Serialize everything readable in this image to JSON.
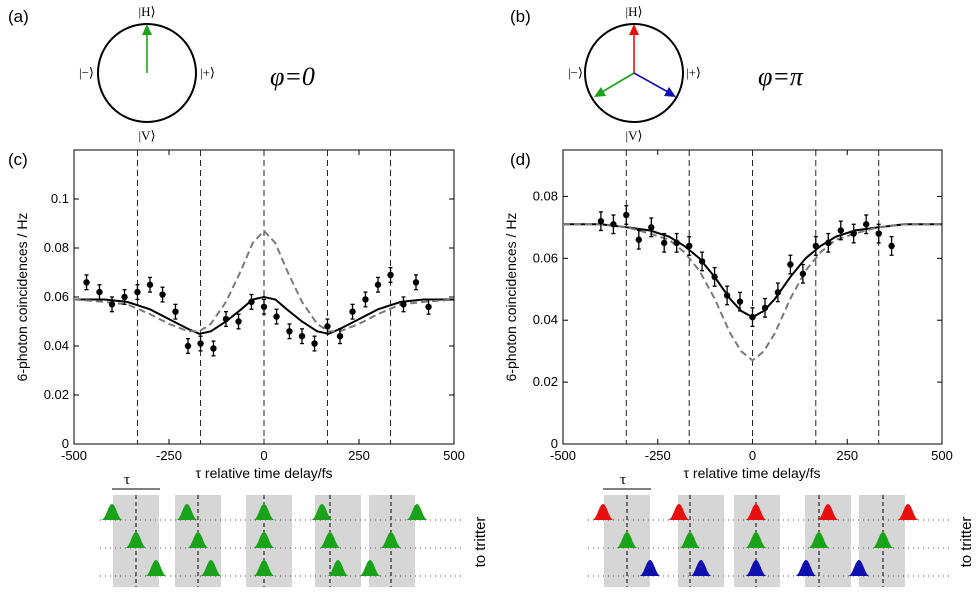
{
  "panel_labels": [
    "(a)",
    "(b)",
    "(c)",
    "(d)"
  ],
  "states": {
    "top": "|H⟩",
    "bottom": "|V⟩",
    "left": "|−⟩",
    "right": "|+⟩"
  },
  "phase_labels": [
    "φ=0",
    "φ=π"
  ],
  "arrow_colors": {
    "red": "#e8100f",
    "green": "#1aa31a",
    "blue": "#1010b0"
  },
  "pulse_labels": {
    "tau": "τ",
    "tritter": "to tritter"
  },
  "chart_data": [
    {
      "type": "scatter",
      "title": "",
      "xlabel": "τ relative time delay/fs",
      "ylabel": "6-photon coincidences / Hz",
      "xlim": [
        -500,
        500
      ],
      "ylim": [
        0,
        0.12
      ],
      "xticks": [
        -500,
        -250,
        0,
        250,
        500
      ],
      "xtick_labels": [
        "-500",
        "-250",
        "0",
        "250",
        "500"
      ],
      "yticks": [
        0,
        0.02,
        0.04,
        0.06,
        0.08,
        0.1
      ],
      "ytick_labels": [
        "0",
        "0.02",
        "0.04",
        "0.06",
        "0.08",
        "0.1"
      ],
      "vlines": [
        -333,
        -167,
        0,
        167,
        333
      ],
      "series": [
        {
          "kind": "points",
          "x": [
            -467,
            -433,
            -400,
            -367,
            -333,
            -300,
            -267,
            -233,
            -200,
            -167,
            -133,
            -100,
            -67,
            -33,
            0,
            33,
            67,
            100,
            133,
            167,
            200,
            233,
            267,
            300,
            333,
            367,
            400,
            433
          ],
          "y": [
            0.066,
            0.062,
            0.057,
            0.06,
            0.062,
            0.065,
            0.061,
            0.054,
            0.04,
            0.041,
            0.039,
            0.051,
            0.05,
            0.058,
            0.056,
            0.052,
            0.046,
            0.044,
            0.041,
            0.048,
            0.044,
            0.054,
            0.059,
            0.065,
            0.069,
            0.057,
            0.066,
            0.056
          ],
          "err": [
            0.003,
            0.003,
            0.003,
            0.003,
            0.003,
            0.003,
            0.003,
            0.003,
            0.003,
            0.003,
            0.003,
            0.003,
            0.003,
            0.003,
            0.003,
            0.003,
            0.003,
            0.003,
            0.003,
            0.003,
            0.003,
            0.003,
            0.003,
            0.003,
            0.003,
            0.003,
            0.003,
            0.003
          ]
        },
        {
          "kind": "fit",
          "style": "solid",
          "x": [
            -500,
            -420,
            -360,
            -300,
            -250,
            -200,
            -170,
            -140,
            -100,
            -60,
            -30,
            0,
            30,
            60,
            100,
            140,
            170,
            200,
            250,
            300,
            360,
            420,
            500
          ],
          "y": [
            0.059,
            0.059,
            0.058,
            0.055,
            0.051,
            0.047,
            0.045,
            0.046,
            0.05,
            0.055,
            0.059,
            0.06,
            0.059,
            0.055,
            0.05,
            0.046,
            0.045,
            0.047,
            0.051,
            0.055,
            0.058,
            0.059,
            0.059
          ]
        },
        {
          "kind": "theory",
          "style": "dashed",
          "x": [
            -500,
            -420,
            -360,
            -300,
            -250,
            -200,
            -170,
            -140,
            -100,
            -60,
            -30,
            0,
            30,
            60,
            100,
            140,
            170,
            200,
            250,
            300,
            360,
            420,
            500
          ],
          "y": [
            0.059,
            0.058,
            0.057,
            0.053,
            0.049,
            0.046,
            0.046,
            0.049,
            0.058,
            0.071,
            0.082,
            0.087,
            0.082,
            0.071,
            0.058,
            0.049,
            0.046,
            0.046,
            0.049,
            0.053,
            0.057,
            0.058,
            0.059
          ]
        }
      ]
    },
    {
      "type": "scatter",
      "title": "",
      "xlabel": "τ relative time delay/fs",
      "ylabel": "6-photon coincidences / Hz",
      "xlim": [
        -500,
        500
      ],
      "ylim": [
        0,
        0.095
      ],
      "xticks": [
        -500,
        -250,
        0,
        250,
        500
      ],
      "xtick_labels": [
        "-500",
        "-250",
        "0",
        "250",
        "500"
      ],
      "yticks": [
        0,
        0.02,
        0.04,
        0.06,
        0.08
      ],
      "ytick_labels": [
        "0",
        "0.02",
        "0.04",
        "0.06",
        "0.08"
      ],
      "vlines": [
        -333,
        -167,
        0,
        167,
        333
      ],
      "series": [
        {
          "kind": "points",
          "x": [
            -400,
            -367,
            -333,
            -300,
            -267,
            -233,
            -200,
            -167,
            -133,
            -100,
            -67,
            -33,
            0,
            33,
            67,
            100,
            133,
            167,
            200,
            233,
            267,
            300,
            333,
            367
          ],
          "y": [
            0.072,
            0.071,
            0.074,
            0.066,
            0.07,
            0.065,
            0.065,
            0.064,
            0.059,
            0.054,
            0.048,
            0.046,
            0.041,
            0.044,
            0.049,
            0.058,
            0.055,
            0.064,
            0.065,
            0.069,
            0.068,
            0.071,
            0.068,
            0.064
          ],
          "err": [
            0.003,
            0.003,
            0.003,
            0.003,
            0.003,
            0.003,
            0.003,
            0.003,
            0.003,
            0.003,
            0.003,
            0.003,
            0.003,
            0.003,
            0.003,
            0.003,
            0.003,
            0.003,
            0.003,
            0.003,
            0.003,
            0.003,
            0.003,
            0.003
          ]
        },
        {
          "kind": "fit",
          "style": "solid",
          "x": [
            -500,
            -400,
            -330,
            -270,
            -220,
            -180,
            -140,
            -100,
            -60,
            -30,
            0,
            30,
            60,
            100,
            140,
            180,
            220,
            270,
            330,
            400,
            500
          ],
          "y": [
            0.071,
            0.071,
            0.07,
            0.069,
            0.067,
            0.064,
            0.06,
            0.054,
            0.047,
            0.043,
            0.041,
            0.043,
            0.047,
            0.054,
            0.06,
            0.064,
            0.067,
            0.069,
            0.07,
            0.071,
            0.071
          ]
        },
        {
          "kind": "theory",
          "style": "dashed",
          "x": [
            -500,
            -400,
            -330,
            -270,
            -220,
            -180,
            -140,
            -100,
            -60,
            -30,
            0,
            30,
            60,
            100,
            140,
            180,
            220,
            270,
            330,
            400,
            500
          ],
          "y": [
            0.071,
            0.071,
            0.07,
            0.068,
            0.066,
            0.062,
            0.056,
            0.047,
            0.036,
            0.03,
            0.027,
            0.03,
            0.036,
            0.047,
            0.056,
            0.062,
            0.066,
            0.068,
            0.07,
            0.071,
            0.071
          ]
        }
      ]
    }
  ]
}
